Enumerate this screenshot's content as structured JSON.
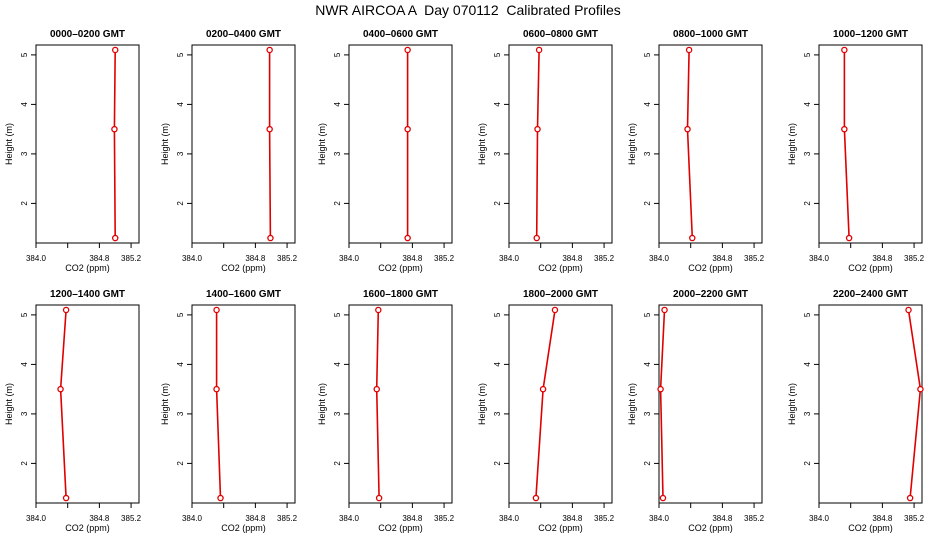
{
  "figure": {
    "title": "NWR AIRCOA A  Day 070112  Calibrated Profiles"
  },
  "colors": {
    "line": "#e00000",
    "marker": "#e00000",
    "axis": "#000000"
  },
  "chart_data": [
    {
      "type": "line",
      "title": "0000–0200 GMT",
      "xlabel": "CO2 (ppm)",
      "ylabel": "Height (m)",
      "xlim": [
        384.0,
        385.3
      ],
      "ylim": [
        1.2,
        5.2
      ],
      "xticks": [
        384.0,
        384.4,
        384.8,
        385.2
      ],
      "xtick_labels": [
        "384.0",
        "",
        "384.8",
        "385.2"
      ],
      "yticks": [
        2,
        3,
        4,
        5
      ],
      "grid": false,
      "series": [
        {
          "x": [
            385.0,
            384.99,
            385.0
          ],
          "y": [
            1.3,
            3.5,
            5.1
          ]
        }
      ]
    },
    {
      "type": "line",
      "title": "0200–0400 GMT",
      "xlabel": "CO2 (ppm)",
      "ylabel": "Height (m)",
      "xlim": [
        384.0,
        385.3
      ],
      "ylim": [
        1.2,
        5.2
      ],
      "xticks": [
        384.0,
        384.4,
        384.8,
        385.2
      ],
      "xtick_labels": [
        "384.0",
        "",
        "384.8",
        "385.2"
      ],
      "yticks": [
        2,
        3,
        4,
        5
      ],
      "grid": false,
      "series": [
        {
          "x": [
            384.99,
            384.98,
            384.98
          ],
          "y": [
            1.3,
            3.5,
            5.1
          ]
        }
      ]
    },
    {
      "type": "line",
      "title": "0400–0600 GMT",
      "xlabel": "CO2 (ppm)",
      "ylabel": "Height (m)",
      "xlim": [
        384.0,
        385.3
      ],
      "ylim": [
        1.2,
        5.2
      ],
      "xticks": [
        384.0,
        384.4,
        384.8,
        385.2
      ],
      "xtick_labels": [
        "384.0",
        "",
        "384.8",
        "385.2"
      ],
      "yticks": [
        2,
        3,
        4,
        5
      ],
      "grid": false,
      "series": [
        {
          "x": [
            384.74,
            384.74,
            384.74
          ],
          "y": [
            1.3,
            3.5,
            5.1
          ]
        }
      ]
    },
    {
      "type": "line",
      "title": "0600–0800 GMT",
      "xlabel": "CO2 (ppm)",
      "ylabel": "Height (m)",
      "xlim": [
        384.0,
        385.3
      ],
      "ylim": [
        1.2,
        5.2
      ],
      "xticks": [
        384.0,
        384.4,
        384.8,
        385.2
      ],
      "xtick_labels": [
        "384.0",
        "",
        "384.8",
        "385.2"
      ],
      "yticks": [
        2,
        3,
        4,
        5
      ],
      "grid": false,
      "series": [
        {
          "x": [
            384.35,
            384.36,
            384.38
          ],
          "y": [
            1.3,
            3.5,
            5.1
          ]
        }
      ]
    },
    {
      "type": "line",
      "title": "0800–1000 GMT",
      "xlabel": "CO2 (ppm)",
      "ylabel": "Height (m)",
      "xlim": [
        384.0,
        385.3
      ],
      "ylim": [
        1.2,
        5.2
      ],
      "xticks": [
        384.0,
        384.4,
        384.8,
        385.2
      ],
      "xtick_labels": [
        "384.0",
        "",
        "384.8",
        "385.2"
      ],
      "yticks": [
        2,
        3,
        4,
        5
      ],
      "grid": false,
      "series": [
        {
          "x": [
            384.42,
            384.36,
            384.38
          ],
          "y": [
            1.3,
            3.5,
            5.1
          ]
        }
      ]
    },
    {
      "type": "line",
      "title": "1000–1200 GMT",
      "xlabel": "CO2 (ppm)",
      "ylabel": "Height (m)",
      "xlim": [
        384.0,
        385.3
      ],
      "ylim": [
        1.2,
        5.2
      ],
      "xticks": [
        384.0,
        384.4,
        384.8,
        385.2
      ],
      "xtick_labels": [
        "384.0",
        "",
        "384.8",
        "385.2"
      ],
      "yticks": [
        2,
        3,
        4,
        5
      ],
      "grid": false,
      "series": [
        {
          "x": [
            384.38,
            384.32,
            384.32
          ],
          "y": [
            1.3,
            3.5,
            5.1
          ]
        }
      ]
    },
    {
      "type": "line",
      "title": "1200–1400 GMT",
      "xlabel": "CO2 (ppm)",
      "ylabel": "Height (m)",
      "xlim": [
        384.0,
        385.3
      ],
      "ylim": [
        1.2,
        5.2
      ],
      "xticks": [
        384.0,
        384.4,
        384.8,
        385.2
      ],
      "xtick_labels": [
        "384.0",
        "",
        "384.8",
        "385.2"
      ],
      "yticks": [
        2,
        3,
        4,
        5
      ],
      "grid": false,
      "series": [
        {
          "x": [
            384.38,
            384.31,
            384.38
          ],
          "y": [
            1.3,
            3.5,
            5.1
          ]
        }
      ]
    },
    {
      "type": "line",
      "title": "1400–1600 GMT",
      "xlabel": "CO2 (ppm)",
      "ylabel": "Height (m)",
      "xlim": [
        384.0,
        385.3
      ],
      "ylim": [
        1.2,
        5.2
      ],
      "xticks": [
        384.0,
        384.4,
        384.8,
        385.2
      ],
      "xtick_labels": [
        "384.0",
        "",
        "384.8",
        "385.2"
      ],
      "yticks": [
        2,
        3,
        4,
        5
      ],
      "grid": false,
      "series": [
        {
          "x": [
            384.36,
            384.31,
            384.31
          ],
          "y": [
            1.3,
            3.5,
            5.1
          ]
        }
      ]
    },
    {
      "type": "line",
      "title": "1600–1800 GMT",
      "xlabel": "CO2 (ppm)",
      "ylabel": "Height (m)",
      "xlim": [
        384.0,
        385.3
      ],
      "ylim": [
        1.2,
        5.2
      ],
      "xticks": [
        384.0,
        384.4,
        384.8,
        385.2
      ],
      "xtick_labels": [
        "384.0",
        "",
        "384.8",
        "385.2"
      ],
      "yticks": [
        2,
        3,
        4,
        5
      ],
      "grid": false,
      "series": [
        {
          "x": [
            384.38,
            384.35,
            384.37
          ],
          "y": [
            1.3,
            3.5,
            5.1
          ]
        }
      ]
    },
    {
      "type": "line",
      "title": "1800–2000 GMT",
      "xlabel": "CO2 (ppm)",
      "ylabel": "Height (m)",
      "xlim": [
        384.0,
        385.3
      ],
      "ylim": [
        1.2,
        5.2
      ],
      "xticks": [
        384.0,
        384.4,
        384.8,
        385.2
      ],
      "xtick_labels": [
        "384.0",
        "",
        "384.8",
        "385.2"
      ],
      "yticks": [
        2,
        3,
        4,
        5
      ],
      "grid": false,
      "series": [
        {
          "x": [
            384.34,
            384.43,
            384.58
          ],
          "y": [
            1.3,
            3.5,
            5.1
          ]
        }
      ]
    },
    {
      "type": "line",
      "title": "2000–2200 GMT",
      "xlabel": "CO2 (ppm)",
      "ylabel": "Height (m)",
      "xlim": [
        384.0,
        385.3
      ],
      "ylim": [
        1.2,
        5.2
      ],
      "xticks": [
        384.0,
        384.4,
        384.8,
        385.2
      ],
      "xtick_labels": [
        "384.0",
        "",
        "384.8",
        "385.2"
      ],
      "yticks": [
        2,
        3,
        4,
        5
      ],
      "grid": false,
      "series": [
        {
          "x": [
            384.05,
            384.02,
            384.07
          ],
          "y": [
            1.3,
            3.5,
            5.1
          ]
        }
      ]
    },
    {
      "type": "line",
      "title": "2200–2400 GMT",
      "xlabel": "CO2 (ppm)",
      "ylabel": "Height (m)",
      "xlim": [
        384.0,
        385.3
      ],
      "ylim": [
        1.2,
        5.2
      ],
      "xticks": [
        384.0,
        384.4,
        384.8,
        385.2
      ],
      "xtick_labels": [
        "384.0",
        "",
        "384.8",
        "385.2"
      ],
      "yticks": [
        2,
        3,
        4,
        5
      ],
      "grid": false,
      "series": [
        {
          "x": [
            385.15,
            385.28,
            385.13
          ],
          "y": [
            1.3,
            3.5,
            5.1
          ]
        }
      ]
    }
  ]
}
